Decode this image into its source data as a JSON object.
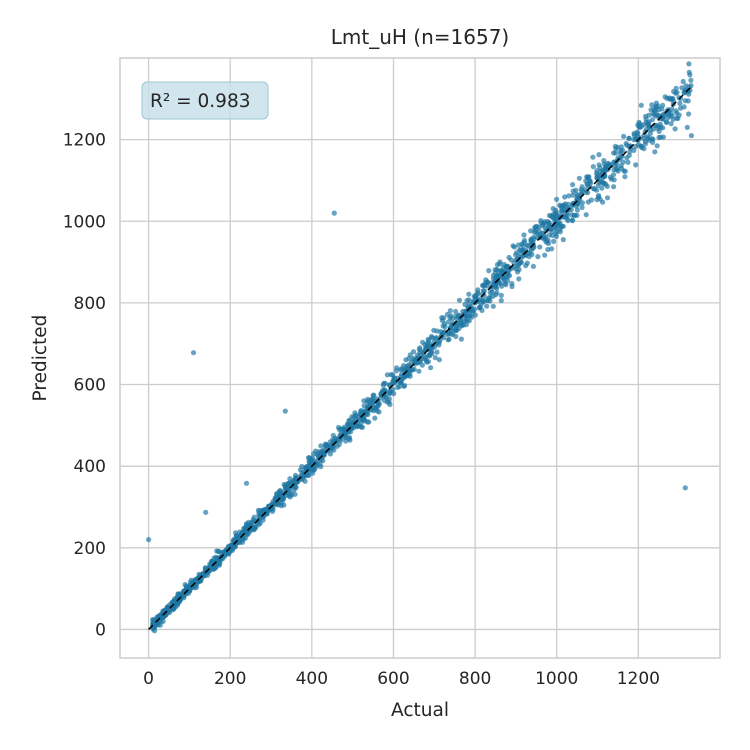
{
  "chart_data": {
    "type": "scatter",
    "title": "Lmt_uH  (n=1657)",
    "xlabel": "Actual",
    "ylabel": "Predicted",
    "xlim": [
      -70,
      1400
    ],
    "ylim": [
      -70,
      1400
    ],
    "xticks": [
      0,
      200,
      400,
      600,
      800,
      1000,
      1200
    ],
    "yticks": [
      0,
      200,
      400,
      600,
      800,
      1000,
      1200
    ],
    "xtick_labels": [
      "0",
      "200",
      "400",
      "600",
      "800",
      "1000",
      "1200"
    ],
    "ytick_labels": [
      "0",
      "200",
      "400",
      "600",
      "800",
      "1000",
      "1200"
    ],
    "grid": true,
    "annotation": "R² = 0.983",
    "r_squared": 0.983,
    "reference_line": {
      "from": [
        0,
        0
      ],
      "to": [
        1330,
        1330
      ],
      "style": "dashed"
    },
    "n_points": 1657,
    "points_sampled": [
      [
        15,
        5
      ],
      [
        35,
        30
      ],
      [
        50,
        45
      ],
      [
        60,
        62
      ],
      [
        75,
        70
      ],
      [
        90,
        95
      ],
      [
        100,
        98
      ],
      [
        110,
        115
      ],
      [
        120,
        118
      ],
      [
        130,
        135
      ],
      [
        140,
        140
      ],
      [
        150,
        160
      ],
      [
        160,
        158
      ],
      [
        170,
        175
      ],
      [
        180,
        178
      ],
      [
        190,
        195
      ],
      [
        200,
        205
      ],
      [
        210,
        208
      ],
      [
        220,
        225
      ],
      [
        230,
        228
      ],
      [
        240,
        245
      ],
      [
        250,
        248
      ],
      [
        260,
        265
      ],
      [
        270,
        268
      ],
      [
        280,
        285
      ],
      [
        290,
        288
      ],
      [
        300,
        305
      ],
      [
        310,
        308
      ],
      [
        320,
        325
      ],
      [
        330,
        328
      ],
      [
        340,
        345
      ],
      [
        350,
        352
      ],
      [
        360,
        365
      ],
      [
        370,
        368
      ],
      [
        380,
        385
      ],
      [
        390,
        392
      ],
      [
        400,
        405
      ],
      [
        410,
        408
      ],
      [
        420,
        425
      ],
      [
        430,
        432
      ],
      [
        440,
        445
      ],
      [
        450,
        452
      ],
      [
        460,
        465
      ],
      [
        470,
        472
      ],
      [
        480,
        485
      ],
      [
        490,
        492
      ],
      [
        500,
        505
      ],
      [
        510,
        512
      ],
      [
        520,
        525
      ],
      [
        530,
        535
      ],
      [
        540,
        545
      ],
      [
        550,
        555
      ],
      [
        560,
        565
      ],
      [
        570,
        578
      ],
      [
        580,
        585
      ],
      [
        590,
        598
      ],
      [
        600,
        605
      ],
      [
        610,
        615
      ],
      [
        620,
        625
      ],
      [
        630,
        640
      ],
      [
        640,
        645
      ],
      [
        650,
        660
      ],
      [
        660,
        665
      ],
      [
        680,
        690
      ],
      [
        700,
        705
      ],
      [
        720,
        725
      ],
      [
        740,
        740
      ],
      [
        760,
        770
      ],
      [
        780,
        780
      ],
      [
        800,
        800
      ],
      [
        820,
        830
      ],
      [
        840,
        840
      ],
      [
        860,
        865
      ],
      [
        880,
        890
      ],
      [
        900,
        905
      ],
      [
        920,
        925
      ],
      [
        940,
        945
      ],
      [
        960,
        965
      ],
      [
        980,
        990
      ],
      [
        1000,
        1005
      ],
      [
        1020,
        1025
      ],
      [
        1040,
        1040
      ],
      [
        1060,
        1065
      ],
      [
        1080,
        1085
      ],
      [
        1100,
        1105
      ],
      [
        1120,
        1125
      ],
      [
        1140,
        1145
      ],
      [
        1160,
        1160
      ],
      [
        1180,
        1185
      ],
      [
        1200,
        1200
      ],
      [
        1220,
        1225
      ],
      [
        1240,
        1235
      ],
      [
        1260,
        1250
      ],
      [
        1280,
        1265
      ],
      [
        1300,
        1260
      ],
      [
        1320,
        1230
      ],
      [
        1330,
        1210
      ]
    ],
    "outliers": [
      [
        0,
        220
      ],
      [
        110,
        678
      ],
      [
        140,
        287
      ],
      [
        240,
        358
      ],
      [
        335,
        535
      ],
      [
        455,
        1020
      ],
      [
        1315,
        347
      ]
    ],
    "colors": {
      "points": "#1f77a4",
      "grid": "#cccccc",
      "reference_line": "#000000",
      "annotation_box": "#c8e1ea",
      "annotation_border": "#9cc6d5"
    }
  }
}
